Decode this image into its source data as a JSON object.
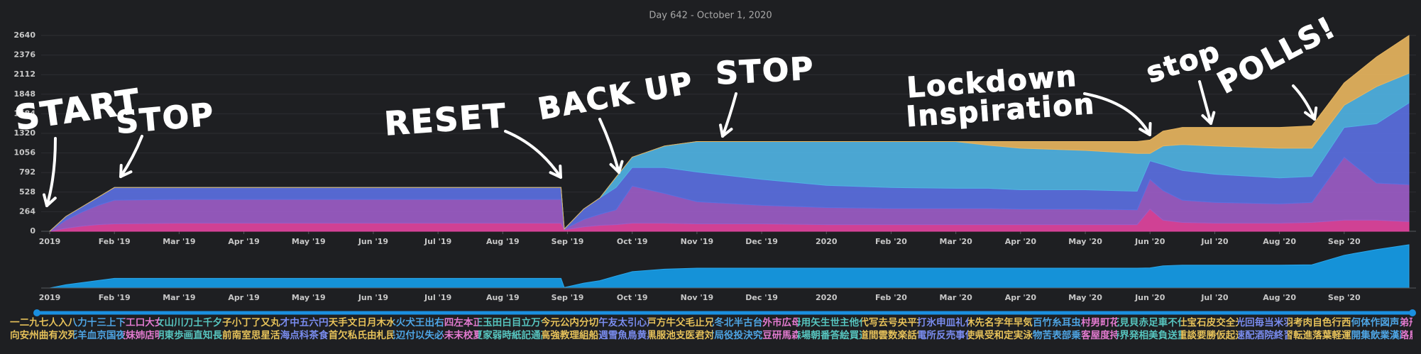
{
  "chart_data": {
    "type": "area",
    "stacked": true,
    "title": "Day 642 - October 1, 2020",
    "x": [
      0,
      0.25,
      0.5,
      0.75,
      1,
      2,
      3,
      4,
      5,
      6,
      7,
      7.9,
      7.95,
      8.25,
      8.5,
      8.75,
      9,
      9.5,
      10,
      11,
      12,
      13,
      14,
      14.5,
      15,
      16,
      16.8,
      17,
      17.2,
      17.5,
      18,
      19,
      19.5,
      20,
      20.5,
      21
    ],
    "series": [
      {
        "color": "#e0449e",
        "values": [
          0,
          40,
          70,
          90,
          100,
          110,
          110,
          110,
          110,
          110,
          110,
          110,
          20,
          60,
          80,
          90,
          110,
          110,
          100,
          100,
          90,
          90,
          90,
          90,
          90,
          90,
          90,
          300,
          150,
          120,
          110,
          110,
          120,
          150,
          150,
          130
        ]
      },
      {
        "color": "#9b5cc6",
        "values": [
          0,
          110,
          190,
          260,
          320,
          320,
          320,
          320,
          320,
          320,
          320,
          320,
          10,
          100,
          150,
          200,
          500,
          400,
          300,
          250,
          230,
          220,
          220,
          220,
          210,
          210,
          200,
          400,
          400,
          300,
          280,
          260,
          270,
          850,
          500,
          500
        ]
      },
      {
        "color": "#5a6fe0",
        "values": [
          0,
          50,
          70,
          110,
          170,
          160,
          160,
          160,
          160,
          160,
          160,
          160,
          0,
          140,
          220,
          300,
          250,
          350,
          400,
          350,
          300,
          280,
          270,
          270,
          260,
          260,
          250,
          250,
          350,
          400,
          380,
          350,
          350,
          400,
          800,
          1100
        ]
      },
      {
        "color": "#4fb2e2",
        "values": [
          0,
          0,
          0,
          0,
          0,
          0,
          0,
          0,
          0,
          0,
          0,
          0,
          0,
          0,
          0,
          140,
          140,
          290,
          410,
          510,
          590,
          620,
          630,
          580,
          560,
          530,
          510,
          100,
          250,
          350,
          380,
          400,
          380,
          300,
          500,
          400
        ]
      },
      {
        "color": "#e6b45e",
        "values": [
          0,
          0,
          0,
          0,
          0,
          0,
          0,
          0,
          0,
          0,
          0,
          0,
          0,
          0,
          0,
          0,
          0,
          0,
          0,
          0,
          0,
          0,
          0,
          50,
          90,
          120,
          160,
          180,
          200,
          230,
          250,
          280,
          300,
          300,
          400,
          510
        ]
      }
    ],
    "xlim": [
      0,
      21
    ],
    "xticks": [
      {
        "value": 0,
        "label": "2019"
      },
      {
        "value": 1,
        "label": "Feb '19"
      },
      {
        "value": 2,
        "label": "Mar '19"
      },
      {
        "value": 3,
        "label": "Apr '19"
      },
      {
        "value": 4,
        "label": "May '19"
      },
      {
        "value": 5,
        "label": "Jun '19"
      },
      {
        "value": 6,
        "label": "Jul '19"
      },
      {
        "value": 7,
        "label": "Aug '19"
      },
      {
        "value": 8,
        "label": "Sep '19"
      },
      {
        "value": 9,
        "label": "Oct '19"
      },
      {
        "value": 10,
        "label": "Nov '19"
      },
      {
        "value": 11,
        "label": "Dec '19"
      },
      {
        "value": 12,
        "label": "2020"
      },
      {
        "value": 13,
        "label": "Feb '20"
      },
      {
        "value": 14,
        "label": "Mar '20"
      },
      {
        "value": 15,
        "label": "Apr '20"
      },
      {
        "value": 16,
        "label": "May '20"
      },
      {
        "value": 17,
        "label": "Jun '20"
      },
      {
        "value": 18,
        "label": "Jul '20"
      },
      {
        "value": 19,
        "label": "Aug '20"
      },
      {
        "value": 20,
        "label": "Sep '20"
      }
    ],
    "ylim": [
      0,
      2640
    ],
    "yticks": [
      0,
      264,
      528,
      792,
      1056,
      1320,
      1584,
      1848,
      2112,
      2376,
      2640
    ],
    "grid": true,
    "annotations": [
      "START",
      "STOP",
      "RESET",
      "BACK UP",
      "STOP",
      "Lockdown",
      "Inspiration",
      "stop",
      "POLLS!"
    ]
  },
  "kanji_lines": [
    "一二九七人入八力十三上下工口大女山川刀土千夕子小丁了又丸才中五六円天手文日月木水火犬王出右四左本正玉田白目立万今元公内分切午友太引心戸方牛父毛止兄冬北半古台外市広母用矢生世主他代写去号央平打氷申皿礼休先名字年早気百竹糸耳虫村男町花見貝赤足車不仕宝石皮交全光回毎当米羽考肉自色行西何体作図声弟形来社角言谷走近里麦学林空金雨青草音汗化地両",
    "向安州曲有次死羊血京国夜妹姉店明東歩画直知長前南室思星活海点科茶食首欠私氏由札民辺付以失必未末校夏家弱時紙記通高強教理組船週雪魚鳥黄黒服池支医君対局役投決究豆研馬森場朝番答絵買道間雲数楽話電所反売事使県受和定実泳物苦表部乗客屋度持界発相美負送重談要勝仮起速配酒院終習転進落葉軽運開集飲業漢路農鉄歌算聞線銀駅鼻読語顔"
  ]
}
